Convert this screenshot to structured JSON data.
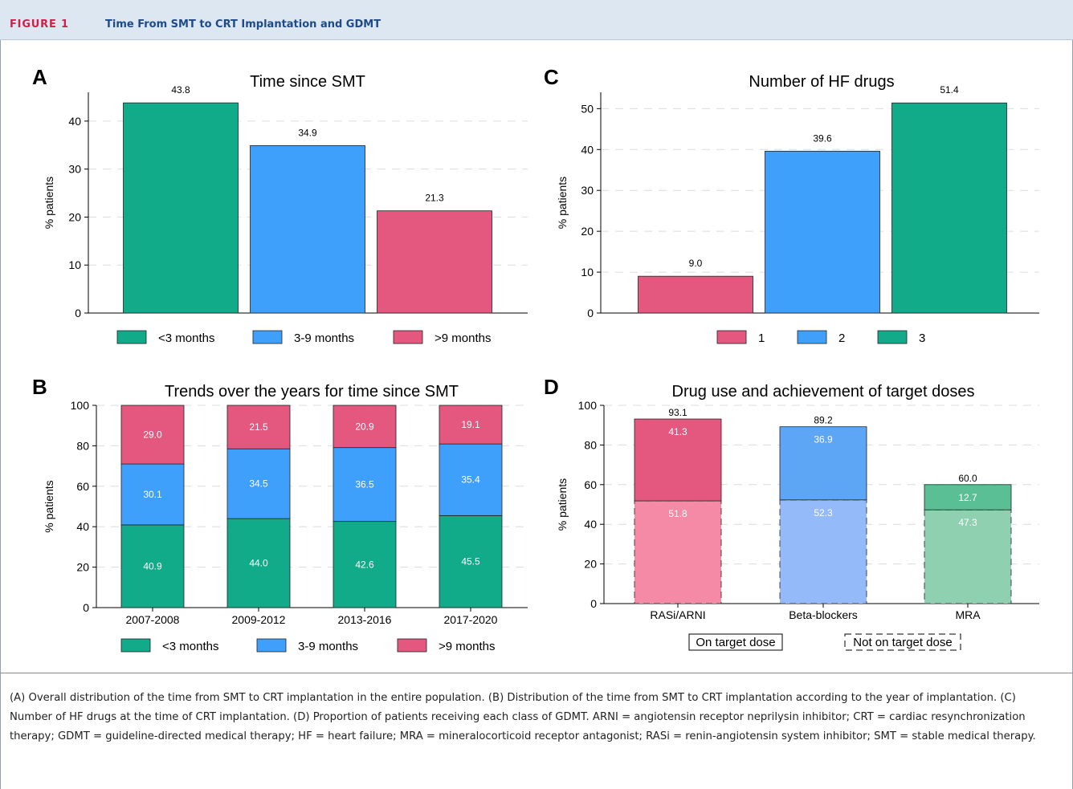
{
  "header": {
    "figure_label": "FIGURE 1",
    "figure_title": "Time From SMT to CRT Implantation and GDMT"
  },
  "colors": {
    "green": "#12ab89",
    "blue": "#3fa0fb",
    "pink": "#e45880",
    "pink_light": "#f48aa6",
    "blue_light": "#95bafa",
    "green_light": "#8fd0b0",
    "green_mid": "#5bbf96",
    "blue_mid": "#5da5f5",
    "grid": "#dcdcdc"
  },
  "chart_data": [
    {
      "id": "A",
      "type": "bar",
      "letter": "A",
      "title": "Time since SMT",
      "ylabel": "% patients",
      "ylim": [
        0,
        46
      ],
      "yticks": [
        0,
        10,
        20,
        30,
        40
      ],
      "categories": [
        "<3 months",
        "3-9 months",
        ">9 months"
      ],
      "values": [
        43.8,
        34.9,
        21.3
      ],
      "value_labels": [
        "43.8",
        "34.9",
        "21.3"
      ],
      "bar_colors": [
        "green",
        "blue",
        "pink"
      ],
      "legend": [
        {
          "label": "<3 months",
          "color": "green"
        },
        {
          "label": "3-9 months",
          "color": "blue"
        },
        {
          "label": ">9 months",
          "color": "pink"
        }
      ]
    },
    {
      "id": "B",
      "type": "bar",
      "stacked": true,
      "letter": "B",
      "title": "Trends over the years for time since SMT",
      "ylabel": "% patients",
      "ylim": [
        0,
        100
      ],
      "yticks": [
        0,
        20,
        40,
        60,
        80,
        100
      ],
      "categories": [
        "2007-2008",
        "2009-2012",
        "2013-2016",
        "2017-2020"
      ],
      "series": [
        {
          "name": "<3 months",
          "color": "green",
          "values": [
            40.9,
            44.0,
            42.6,
            45.5
          ],
          "labels": [
            "40.9",
            "44.0",
            "42.6",
            "45.5"
          ]
        },
        {
          "name": "3-9 months",
          "color": "blue",
          "values": [
            30.1,
            34.5,
            36.5,
            35.4
          ],
          "labels": [
            "30.1",
            "34.5",
            "36.5",
            "35.4"
          ]
        },
        {
          "name": ">9 months",
          "color": "pink",
          "values": [
            29.0,
            21.5,
            20.9,
            19.1
          ],
          "labels": [
            "29.0",
            "21.5",
            "20.9",
            "19.1"
          ]
        }
      ],
      "legend": [
        {
          "label": "<3 months",
          "color": "green"
        },
        {
          "label": "3-9 months",
          "color": "blue"
        },
        {
          "label": ">9 months",
          "color": "pink"
        }
      ]
    },
    {
      "id": "C",
      "type": "bar",
      "letter": "C",
      "title": "Number of HF drugs",
      "ylabel": "% patients",
      "ylim": [
        0,
        54
      ],
      "yticks": [
        0,
        10,
        20,
        30,
        40,
        50
      ],
      "categories": [
        "1",
        "2",
        "3"
      ],
      "values": [
        9.0,
        39.6,
        51.4
      ],
      "value_labels": [
        "9.0",
        "39.6",
        "51.4"
      ],
      "bar_colors": [
        "pink",
        "blue",
        "green"
      ],
      "legend": [
        {
          "label": "1",
          "color": "pink"
        },
        {
          "label": "2",
          "color": "blue"
        },
        {
          "label": "3",
          "color": "green"
        }
      ]
    },
    {
      "id": "D",
      "type": "bar",
      "stacked": true,
      "letter": "D",
      "title": "Drug use and achievement of target doses",
      "ylabel": "% patients",
      "ylim": [
        0,
        100
      ],
      "yticks": [
        0,
        20,
        40,
        60,
        80,
        100
      ],
      "categories": [
        "RASi/ARNI",
        "Beta-blockers",
        "MRA"
      ],
      "totals": [
        93.1,
        89.2,
        60.0
      ],
      "total_labels": [
        "93.1",
        "89.2",
        "60.0"
      ],
      "series": [
        {
          "name": "Not on target dose",
          "values": [
            51.8,
            52.3,
            47.3
          ],
          "labels": [
            "51.8",
            "52.3",
            "47.3"
          ],
          "colors": [
            "pink_light",
            "blue_light",
            "green_light"
          ],
          "dashed": true
        },
        {
          "name": "On target dose",
          "values": [
            41.3,
            36.9,
            12.7
          ],
          "labels": [
            "41.3",
            "36.9",
            "12.7"
          ],
          "colors": [
            "pink",
            "blue_mid",
            "green_mid"
          ],
          "dashed": false
        }
      ],
      "legend": [
        {
          "label": "On target dose",
          "dashed": false
        },
        {
          "label": "Not on target dose",
          "dashed": true
        }
      ]
    }
  ],
  "caption": "(A) Overall distribution of the time from SMT to CRT implantation in the entire population. (B) Distribution of the time from SMT to CRT implantation according to the year of implantation. (C) Number of HF drugs at the time of CRT implantation. (D) Proportion of patients receiving each class of GDMT. ARNI = angiotensin receptor neprilysin inhibitor; CRT = cardiac resynchronization therapy; GDMT = guideline-directed medical therapy; HF = heart failure; MRA = mineralocorticoid receptor antagonist; RASi = renin-angiotensin system inhibitor; SMT = stable medical therapy."
}
